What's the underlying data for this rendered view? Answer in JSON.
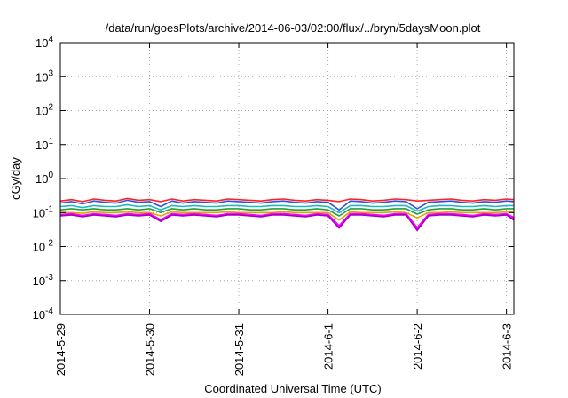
{
  "chart_data": {
    "type": "line",
    "title": "/data/run/goesPlots/archive/2014-06-03/02:00/flux/../bryn/5daysMoon.plot",
    "xlabel": "Coordinated Universal Time (UTC)",
    "ylabel": "cGy/day",
    "yscale": "log",
    "ylim": [
      0.0001,
      10000
    ],
    "y_ticks": [
      {
        "value": 0.0001,
        "base": "10",
        "exp": "-4"
      },
      {
        "value": 0.001,
        "base": "10",
        "exp": "-3"
      },
      {
        "value": 0.01,
        "base": "10",
        "exp": "-2"
      },
      {
        "value": 0.1,
        "base": "10",
        "exp": "-1"
      },
      {
        "value": 1,
        "base": "10",
        "exp": "0"
      },
      {
        "value": 10,
        "base": "10",
        "exp": "1"
      },
      {
        "value": 100,
        "base": "10",
        "exp": "2"
      },
      {
        "value": 1000,
        "base": "10",
        "exp": "3"
      },
      {
        "value": 10000,
        "base": "10",
        "exp": "4"
      }
    ],
    "x_ticks": [
      "2014-5-29",
      "2014-5-30",
      "2014-5-31",
      "2014-6-1",
      "2014-6-2",
      "2014-6-3"
    ],
    "xlim": [
      "2014-05-29T00:00",
      "2014-06-03T02:00"
    ],
    "grid": true,
    "x": [
      "2014-05-29T00:00",
      "2014-05-29T03:00",
      "2014-05-29T06:00",
      "2014-05-29T09:00",
      "2014-05-29T12:00",
      "2014-05-29T15:00",
      "2014-05-29T18:00",
      "2014-05-29T21:00",
      "2014-05-30T00:00",
      "2014-05-30T03:00",
      "2014-05-30T06:00",
      "2014-05-30T09:00",
      "2014-05-30T12:00",
      "2014-05-30T15:00",
      "2014-05-30T18:00",
      "2014-05-30T21:00",
      "2014-05-31T00:00",
      "2014-05-31T03:00",
      "2014-05-31T06:00",
      "2014-05-31T09:00",
      "2014-05-31T12:00",
      "2014-05-31T15:00",
      "2014-05-31T18:00",
      "2014-05-31T21:00",
      "2014-06-01T00:00",
      "2014-06-01T03:00",
      "2014-06-01T06:00",
      "2014-06-01T09:00",
      "2014-06-01T12:00",
      "2014-06-01T15:00",
      "2014-06-01T18:00",
      "2014-06-01T21:00",
      "2014-06-02T00:00",
      "2014-06-02T03:00",
      "2014-06-02T06:00",
      "2014-06-02T09:00",
      "2014-06-02T12:00",
      "2014-06-02T15:00",
      "2014-06-02T18:00",
      "2014-06-02T21:00",
      "2014-06-03T00:00",
      "2014-06-03T02:00"
    ],
    "series": [
      {
        "color": "#ff2020",
        "values": [
          0.22,
          0.24,
          0.21,
          0.25,
          0.23,
          0.22,
          0.26,
          0.23,
          0.24,
          0.21,
          0.25,
          0.22,
          0.24,
          0.23,
          0.22,
          0.25,
          0.24,
          0.23,
          0.22,
          0.24,
          0.25,
          0.23,
          0.22,
          0.24,
          0.23,
          0.21,
          0.25,
          0.24,
          0.22,
          0.23,
          0.25,
          0.24,
          0.22,
          0.23,
          0.24,
          0.25,
          0.23,
          0.22,
          0.24,
          0.23,
          0.25,
          0.24
        ]
      },
      {
        "color": "#3050e0",
        "values": [
          0.19,
          0.21,
          0.18,
          0.22,
          0.2,
          0.19,
          0.23,
          0.2,
          0.21,
          0.15,
          0.22,
          0.19,
          0.21,
          0.2,
          0.19,
          0.22,
          0.21,
          0.2,
          0.19,
          0.21,
          0.22,
          0.2,
          0.19,
          0.21,
          0.2,
          0.12,
          0.22,
          0.21,
          0.19,
          0.2,
          0.22,
          0.21,
          0.13,
          0.2,
          0.21,
          0.22,
          0.2,
          0.19,
          0.21,
          0.2,
          0.22,
          0.21
        ]
      },
      {
        "color": "#20b8b8",
        "values": [
          0.15,
          0.16,
          0.14,
          0.16,
          0.15,
          0.15,
          0.17,
          0.15,
          0.16,
          0.12,
          0.16,
          0.15,
          0.16,
          0.15,
          0.15,
          0.16,
          0.16,
          0.15,
          0.15,
          0.16,
          0.16,
          0.15,
          0.15,
          0.16,
          0.15,
          0.1,
          0.16,
          0.16,
          0.15,
          0.15,
          0.16,
          0.16,
          0.11,
          0.15,
          0.16,
          0.16,
          0.15,
          0.15,
          0.16,
          0.15,
          0.16,
          0.16
        ]
      },
      {
        "color": "#20a040",
        "values": [
          0.12,
          0.13,
          0.12,
          0.13,
          0.12,
          0.12,
          0.13,
          0.12,
          0.13,
          0.1,
          0.13,
          0.12,
          0.13,
          0.12,
          0.12,
          0.13,
          0.13,
          0.12,
          0.12,
          0.13,
          0.13,
          0.12,
          0.12,
          0.13,
          0.12,
          0.08,
          0.13,
          0.13,
          0.12,
          0.12,
          0.13,
          0.13,
          0.09,
          0.12,
          0.13,
          0.13,
          0.12,
          0.12,
          0.13,
          0.12,
          0.13,
          0.13
        ]
      },
      {
        "color": "#e8a000",
        "values": [
          0.1,
          0.1,
          0.095,
          0.105,
          0.1,
          0.1,
          0.105,
          0.1,
          0.1,
          0.08,
          0.105,
          0.1,
          0.1,
          0.1,
          0.1,
          0.105,
          0.1,
          0.1,
          0.1,
          0.1,
          0.105,
          0.1,
          0.1,
          0.1,
          0.1,
          0.06,
          0.105,
          0.1,
          0.1,
          0.1,
          0.105,
          0.1,
          0.07,
          0.1,
          0.1,
          0.105,
          0.1,
          0.1,
          0.1,
          0.1,
          0.105,
          0.1
        ]
      },
      {
        "color": "#ff00ff",
        "values": [
          0.085,
          0.09,
          0.08,
          0.09,
          0.085,
          0.08,
          0.09,
          0.085,
          0.09,
          0.06,
          0.09,
          0.085,
          0.09,
          0.085,
          0.08,
          0.09,
          0.09,
          0.085,
          0.08,
          0.09,
          0.09,
          0.085,
          0.08,
          0.09,
          0.085,
          0.04,
          0.09,
          0.09,
          0.085,
          0.08,
          0.09,
          0.09,
          0.035,
          0.085,
          0.09,
          0.09,
          0.085,
          0.08,
          0.09,
          0.085,
          0.09,
          0.07
        ]
      },
      {
        "color": "#a000c0",
        "values": [
          0.08,
          0.085,
          0.075,
          0.085,
          0.08,
          0.075,
          0.085,
          0.08,
          0.085,
          0.055,
          0.085,
          0.08,
          0.085,
          0.08,
          0.075,
          0.085,
          0.085,
          0.08,
          0.075,
          0.085,
          0.085,
          0.08,
          0.075,
          0.085,
          0.08,
          0.035,
          0.085,
          0.085,
          0.08,
          0.075,
          0.085,
          0.085,
          0.03,
          0.08,
          0.085,
          0.085,
          0.08,
          0.075,
          0.085,
          0.08,
          0.085,
          0.06
        ]
      }
    ]
  }
}
